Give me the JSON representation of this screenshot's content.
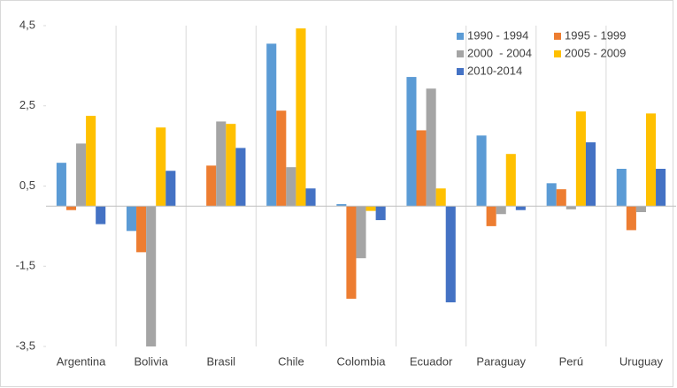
{
  "chart_data": {
    "type": "bar",
    "categories": [
      "Argentina",
      "Bolivia",
      "Brasil",
      "Chile",
      "Colombia",
      "Ecuador",
      "Paraguay",
      "Perú",
      "Uruguay"
    ],
    "series": [
      {
        "name": "1990 - 1994",
        "color": "#5b9bd5",
        "values": [
          1.08,
          -0.62,
          0,
          4.05,
          0.05,
          3.22,
          1.76,
          0.57,
          0.93
        ]
      },
      {
        "name": "1995 - 1999",
        "color": "#ed7d31",
        "values": [
          -0.1,
          -1.15,
          1.01,
          2.38,
          -2.31,
          1.89,
          -0.5,
          0.42,
          -0.6
        ]
      },
      {
        "name": "2000  - 2004",
        "color": "#a5a5a5",
        "values": [
          1.56,
          -3.5,
          2.11,
          0.97,
          -1.3,
          2.93,
          -0.2,
          -0.08,
          -0.15
        ]
      },
      {
        "name": "2005 - 2009",
        "color": "#ffc000",
        "values": [
          2.25,
          1.96,
          2.05,
          4.43,
          -0.12,
          0.44,
          1.3,
          2.36,
          2.31
        ]
      },
      {
        "name": "2010-2014",
        "color": "#4472c4",
        "values": [
          -0.45,
          0.88,
          1.45,
          0.44,
          -0.35,
          -2.4,
          -0.1,
          1.59,
          0.93
        ]
      }
    ],
    "ylim": [
      -3.5,
      4.5
    ],
    "yticks": [
      {
        "value": -3.5,
        "label": "-3,5"
      },
      {
        "value": -1.5,
        "label": "-1,5"
      },
      {
        "value": 0.5,
        "label": "0,5"
      },
      {
        "value": 2.5,
        "label": "2,5"
      },
      {
        "value": 4.5,
        "label": "4,5"
      }
    ],
    "legend_position": "top-right"
  }
}
